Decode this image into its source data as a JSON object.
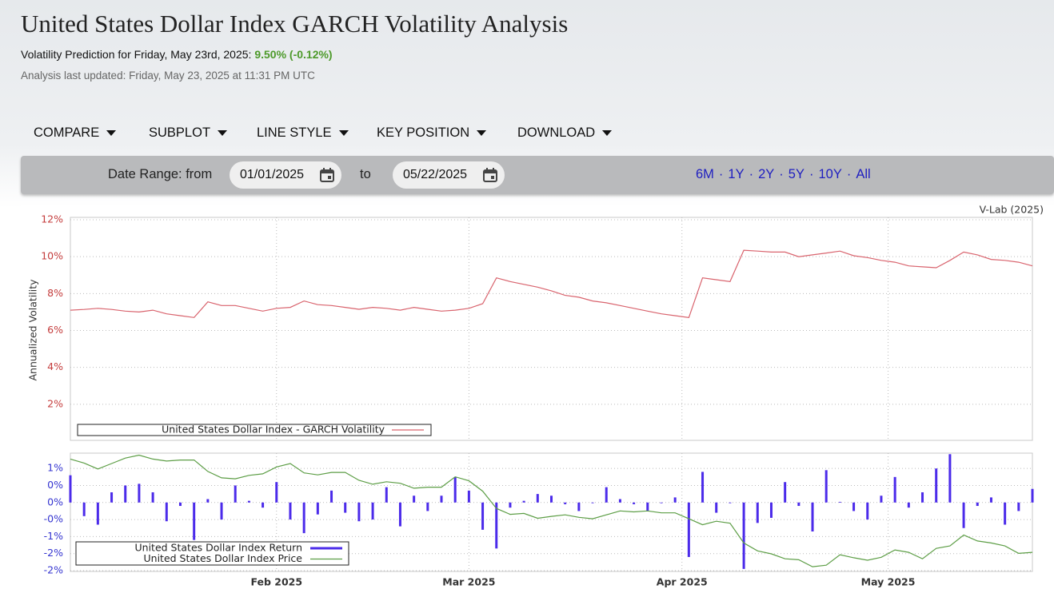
{
  "header": {
    "title": "United States Dollar Index GARCH Volatility Analysis",
    "prediction_label": "Volatility Prediction for Friday, May 23rd, 2025:",
    "prediction_value": "9.50% (-0.12%)",
    "updated": "Analysis last updated: Friday, May 23, 2025 at 11:31 PM UTC"
  },
  "toolbar": {
    "menus": [
      "COMPARE",
      "SUBPLOT",
      "LINE STYLE",
      "KEY POSITION",
      "DOWNLOAD"
    ]
  },
  "date_range": {
    "label": "Date Range:  from",
    "from": "01/01/2025",
    "to_label": "to",
    "to": "05/22/2025",
    "presets": [
      "6M",
      "1Y",
      "2Y",
      "5Y",
      "10Y",
      "All"
    ],
    "separator": "·"
  },
  "credit": "V-Lab (2025)",
  "chart_data": [
    {
      "type": "line",
      "y_label": "Annualized Volatility",
      "grid": true,
      "legend": "lower left",
      "xlim": [
        "2025-01-02",
        "2025-05-22"
      ],
      "ylim": [
        0,
        12
      ],
      "yticks": [
        {
          "value": 2,
          "label": "2%"
        },
        {
          "value": 4,
          "label": "4%"
        },
        {
          "value": 6,
          "label": "6%"
        },
        {
          "value": 8,
          "label": "8%"
        },
        {
          "value": 10,
          "label": "10%"
        },
        {
          "value": 12,
          "label": "12%"
        }
      ],
      "series": [
        {
          "name": "United States Dollar Index - GARCH Volatility",
          "color": "#d9646e",
          "values": [
            7.1,
            7.14,
            7.2,
            7.14,
            7.05,
            7.0,
            7.1,
            6.9,
            6.8,
            6.7,
            7.55,
            7.35,
            7.35,
            7.2,
            7.05,
            7.2,
            7.25,
            7.6,
            7.4,
            7.35,
            7.25,
            7.15,
            7.25,
            7.2,
            7.1,
            7.25,
            7.15,
            7.05,
            7.1,
            7.2,
            7.45,
            8.85,
            8.65,
            8.5,
            8.35,
            8.15,
            7.9,
            7.8,
            7.6,
            7.5,
            7.35,
            7.2,
            7.05,
            6.9,
            6.8,
            6.7,
            8.85,
            8.75,
            8.65,
            10.35,
            10.3,
            10.25,
            10.25,
            10.0,
            10.1,
            10.2,
            10.3,
            10.05,
            9.95,
            9.8,
            9.7,
            9.5,
            9.45,
            9.4,
            9.8,
            10.25,
            10.1,
            9.85,
            9.8,
            9.7,
            9.5
          ]
        }
      ]
    },
    {
      "type": "bar",
      "grid": true,
      "legend": "lower left",
      "xlim": [
        "2025-01-02",
        "2025-05-22"
      ],
      "xticks": [
        {
          "value": "2025-02-01",
          "label": "Feb 2025"
        },
        {
          "value": "2025-03-01",
          "label": "Mar 2025"
        },
        {
          "value": "2025-04-01",
          "label": "Apr 2025"
        },
        {
          "value": "2025-05-01",
          "label": "May 2025"
        }
      ],
      "ylim": [
        -2,
        1.45
      ],
      "yticks": [
        {
          "value": 1,
          "label": "1%"
        },
        {
          "value": 0.5,
          "label": "0%"
        },
        {
          "value": 0,
          "label": "0%"
        },
        {
          "value": -0.5,
          "label": "-0%"
        },
        {
          "value": -1,
          "label": "-1%"
        },
        {
          "value": -1.5,
          "label": "-2%"
        },
        {
          "value": -2,
          "label": "-2%"
        }
      ],
      "y2lim": [
        98.2,
        110.1
      ],
      "series": [
        {
          "name": "United States Dollar Index Return",
          "color": "#4b2bea",
          "values": [
            0.8,
            -0.4,
            -0.65,
            0.3,
            0.5,
            0.55,
            0.3,
            -0.55,
            -0.1,
            -1.1,
            0.1,
            -0.5,
            0.5,
            0.05,
            -0.15,
            0.6,
            -0.5,
            -0.9,
            -0.35,
            0.35,
            -0.3,
            -0.55,
            -0.5,
            0.45,
            -0.7,
            0.2,
            -0.25,
            0.2,
            0.75,
            0.35,
            -0.8,
            -1.35,
            -0.15,
            0.05,
            0.25,
            0.2,
            -0.05,
            -0.25,
            -0.02,
            0.45,
            0.1,
            -0.05,
            -0.25,
            -0.02,
            0.15,
            -1.6,
            0.9,
            -0.3,
            -0.02,
            -1.95,
            -0.6,
            -0.45,
            0.6,
            -0.1,
            -0.85,
            0.95,
            0.02,
            -0.25,
            -0.5,
            0.2,
            0.75,
            -0.15,
            0.3,
            1.0,
            1.42,
            -0.75,
            -0.1,
            0.15,
            -0.65,
            -0.25,
            0.4
          ]
        },
        {
          "name": "United States Dollar Index Price",
          "color": "#5d9e46",
          "type": "line",
          "axis": "y2",
          "values": [
            109.5,
            109.1,
            108.5,
            109.05,
            109.6,
            109.9,
            109.5,
            109.3,
            109.4,
            109.4,
            108.25,
            107.6,
            107.5,
            107.85,
            108.0,
            108.7,
            109.05,
            108.1,
            107.9,
            108.15,
            108.15,
            107.35,
            106.95,
            107.2,
            107.05,
            106.55,
            106.65,
            106.65,
            107.7,
            107.3,
            106.25,
            104.5,
            103.9,
            104.0,
            103.5,
            103.7,
            103.85,
            103.6,
            103.45,
            103.85,
            104.25,
            104.15,
            104.25,
            104.05,
            104.05,
            103.45,
            102.85,
            103.2,
            103.0,
            101.0,
            100.2,
            99.9,
            99.4,
            99.3,
            98.6,
            98.75,
            99.8,
            99.5,
            99.25,
            99.55,
            100.3,
            100.05,
            99.4,
            100.45,
            100.7,
            101.8,
            101.2,
            101.0,
            100.7,
            99.95,
            100.05
          ]
        }
      ]
    }
  ]
}
